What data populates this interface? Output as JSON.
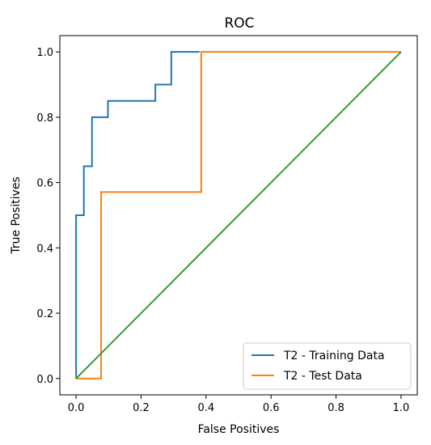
{
  "chart_data": {
    "type": "line",
    "title": "ROC",
    "xlabel": "False Positives",
    "ylabel": "True Positives",
    "xlim": [
      -0.05,
      1.05
    ],
    "ylim": [
      -0.05,
      1.05
    ],
    "xticks": [
      0.0,
      0.2,
      0.4,
      0.6,
      0.8,
      1.0
    ],
    "yticks": [
      0.0,
      0.2,
      0.4,
      0.6,
      0.8,
      1.0
    ],
    "xtick_labels": [
      "0.0",
      "0.2",
      "0.4",
      "0.6",
      "0.8",
      "1.0"
    ],
    "ytick_labels": [
      "0.0",
      "0.2",
      "0.4",
      "0.6",
      "0.8",
      "1.0"
    ],
    "grid": false,
    "legend_position": "bottom-right",
    "series": [
      {
        "name": "T2 - Training Data",
        "color": "#1f77b4",
        "x": [
          0.0,
          0.0,
          0.024,
          0.024,
          0.049,
          0.049,
          0.098,
          0.098,
          0.244,
          0.244,
          0.293,
          0.293,
          0.38
        ],
        "y": [
          0.0,
          0.5,
          0.5,
          0.65,
          0.65,
          0.8,
          0.8,
          0.85,
          0.85,
          0.9,
          0.9,
          1.0,
          1.0
        ]
      },
      {
        "name": "T2 - Test Data",
        "color": "#ff7f0e",
        "x": [
          0.0,
          0.077,
          0.077,
          0.385,
          0.385,
          1.0
        ],
        "y": [
          0.0,
          0.0,
          0.571,
          0.571,
          1.0,
          1.0
        ]
      },
      {
        "color": "#2ca02c",
        "x": [
          0.0,
          1.0
        ],
        "y": [
          0.0,
          1.0
        ]
      }
    ]
  }
}
